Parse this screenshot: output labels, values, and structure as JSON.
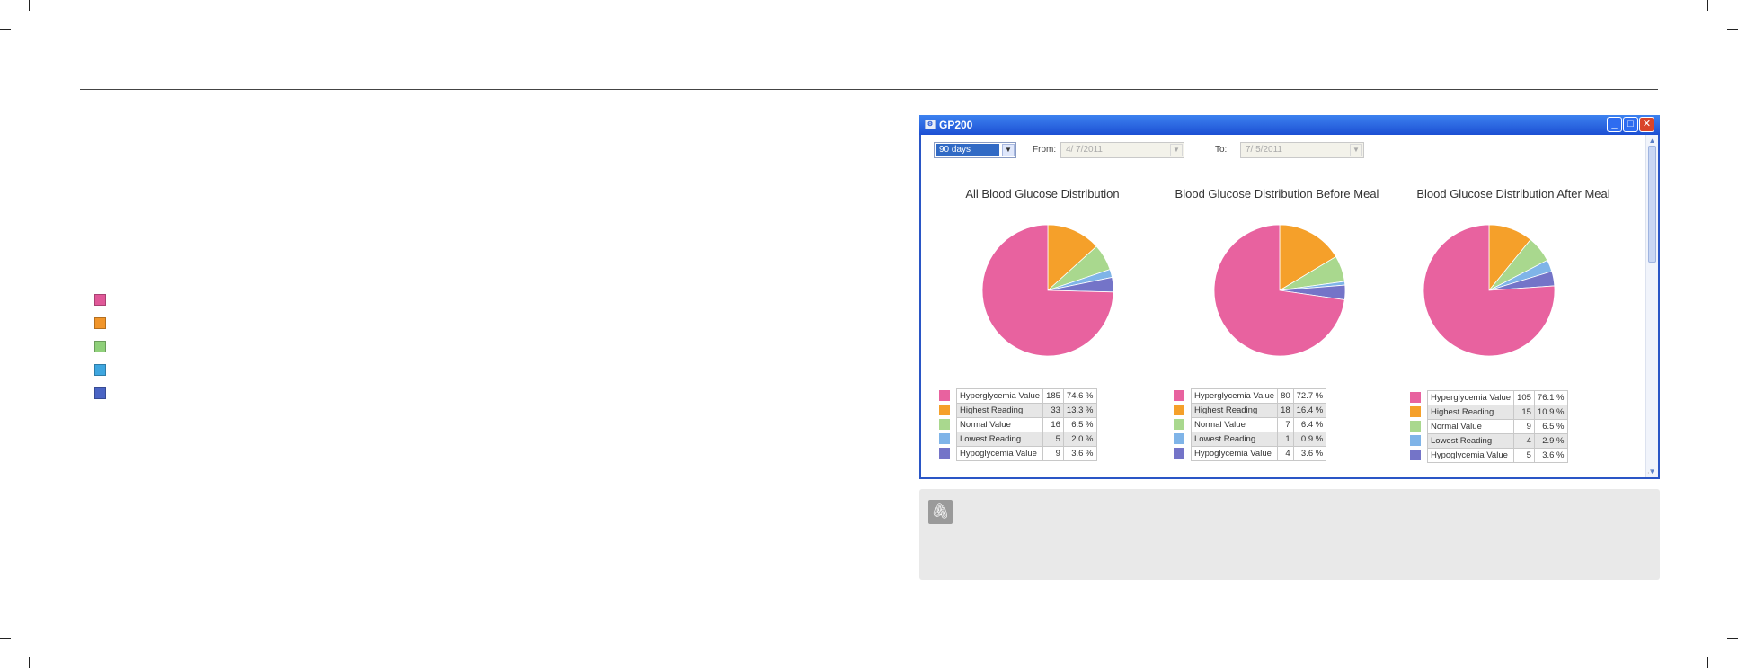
{
  "colors": {
    "hyperglycemia": "#e8629f",
    "highest": "#f5a02a",
    "normal": "#a9d88e",
    "lowest": "#7fb4e8",
    "hypoglycemia": "#7474c8",
    "side_legend": [
      "#e05898",
      "#f1952a",
      "#8fd07a",
      "#3ea6df",
      "#4a64c4"
    ]
  },
  "window": {
    "title": "GP200",
    "app_icon": "app-icon",
    "period_select": "90 days",
    "from_label": "From:",
    "from_value": "4/ 7/2011",
    "to_label": "To:",
    "to_value": "7/ 5/2011",
    "buttons": {
      "minimize": "_",
      "maximize": "□",
      "close": "✕"
    }
  },
  "charts": [
    {
      "title": "All Blood Glucose Distribution",
      "rows": [
        {
          "name": "Hyperglycemia Value",
          "count": "185",
          "percent": "74.6 %"
        },
        {
          "name": "Highest Reading",
          "count": "33",
          "percent": "13.3 %"
        },
        {
          "name": "Normal Value",
          "count": "16",
          "percent": "6.5 %"
        },
        {
          "name": "Lowest Reading",
          "count": "5",
          "percent": "2.0 %"
        },
        {
          "name": "Hypoglycemia Value",
          "count": "9",
          "percent": "3.6 %"
        }
      ]
    },
    {
      "title": "Blood Glucose Distribution Before Meal",
      "rows": [
        {
          "name": "Hyperglycemia Value",
          "count": "80",
          "percent": "72.7 %"
        },
        {
          "name": "Highest Reading",
          "count": "18",
          "percent": "16.4 %"
        },
        {
          "name": "Normal Value",
          "count": "7",
          "percent": "6.4 %"
        },
        {
          "name": "Lowest Reading",
          "count": "1",
          "percent": "0.9 %"
        },
        {
          "name": "Hypoglycemia Value",
          "count": "4",
          "percent": "3.6 %"
        }
      ]
    },
    {
      "title": "Blood Glucose Distribution After Meal",
      "rows": [
        {
          "name": "Hyperglycemia Value",
          "count": "105",
          "percent": "76.1 %"
        },
        {
          "name": "Highest Reading",
          "count": "15",
          "percent": "10.9 %"
        },
        {
          "name": "Normal Value",
          "count": "9",
          "percent": "6.5 %"
        },
        {
          "name": "Lowest Reading",
          "count": "4",
          "percent": "2.9 %"
        },
        {
          "name": "Hypoglycemia Value",
          "count": "5",
          "percent": "3.6 %"
        }
      ]
    }
  ],
  "chart_data": [
    {
      "type": "pie",
      "title": "All Blood Glucose Distribution",
      "categories": [
        "Hyperglycemia Value",
        "Highest Reading",
        "Normal Value",
        "Lowest Reading",
        "Hypoglycemia Value"
      ],
      "values": [
        74.6,
        13.3,
        6.5,
        2.0,
        3.6
      ]
    },
    {
      "type": "pie",
      "title": "Blood Glucose Distribution Before Meal",
      "categories": [
        "Hyperglycemia Value",
        "Highest Reading",
        "Normal Value",
        "Lowest Reading",
        "Hypoglycemia Value"
      ],
      "values": [
        72.7,
        16.4,
        6.4,
        0.9,
        3.6
      ]
    },
    {
      "type": "pie",
      "title": "Blood Glucose Distribution After Meal",
      "categories": [
        "Hyperglycemia Value",
        "Highest Reading",
        "Normal Value",
        "Lowest Reading",
        "Hypoglycemia Value"
      ],
      "values": [
        76.1,
        10.9,
        6.5,
        2.9,
        3.6
      ]
    }
  ],
  "note": {
    "icon": "paperclip-icon",
    "glyph": "🖇"
  }
}
